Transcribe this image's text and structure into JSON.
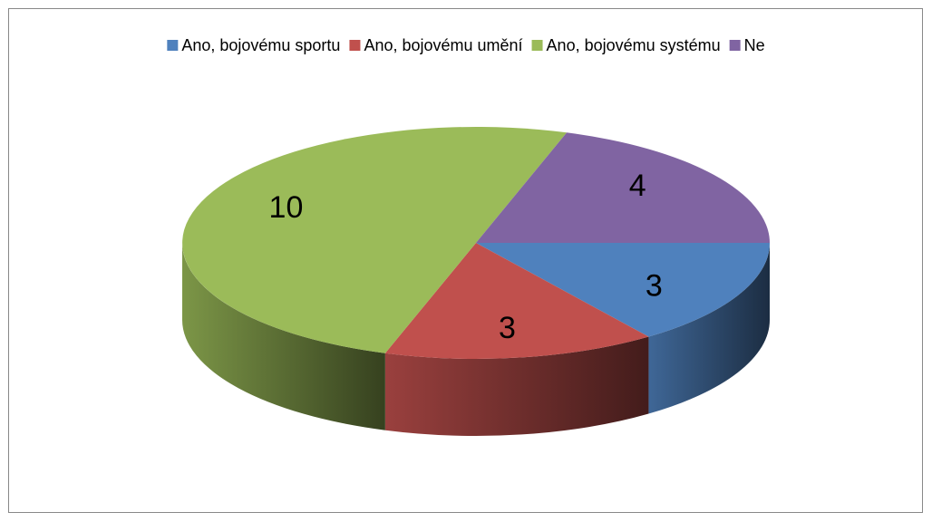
{
  "chart_data": {
    "type": "pie3d",
    "categories": [
      "Ano, bojovému sportu",
      "Ano, bojovému umění",
      "Ano, bojovému systému",
      "Ne"
    ],
    "values": [
      3,
      3,
      10,
      4
    ],
    "colors": [
      "#4f81bd",
      "#c0504d",
      "#9bbb59",
      "#8064a2"
    ],
    "legend": "top"
  }
}
